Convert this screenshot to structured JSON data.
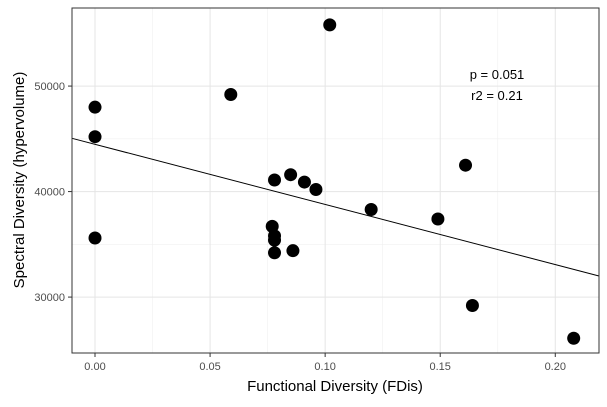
{
  "chart_data": {
    "type": "scatter",
    "title": "",
    "xlabel": "Functional Diversity (FDis)",
    "ylabel": "Spectral Diversity (hypervolume)",
    "xlim": [
      -0.01,
      0.219
    ],
    "ylim": [
      24700,
      57400
    ],
    "x_ticks": [
      0.0,
      0.05,
      0.1,
      0.15,
      0.2
    ],
    "x_tick_labels": [
      "0.00",
      "0.05",
      "0.10",
      "0.15",
      "0.20"
    ],
    "y_ticks": [
      30000,
      40000,
      50000
    ],
    "y_tick_labels": [
      "30000",
      "40000",
      "50000"
    ],
    "grid": true,
    "series": [
      {
        "points": [
          {
            "x": 0.0,
            "y": 48000
          },
          {
            "x": 0.0,
            "y": 45200
          },
          {
            "x": 0.0,
            "y": 35600
          },
          {
            "x": 0.059,
            "y": 49200
          },
          {
            "x": 0.077,
            "y": 36700
          },
          {
            "x": 0.078,
            "y": 35800
          },
          {
            "x": 0.078,
            "y": 35400
          },
          {
            "x": 0.078,
            "y": 34200
          },
          {
            "x": 0.078,
            "y": 41100
          },
          {
            "x": 0.085,
            "y": 41600
          },
          {
            "x": 0.086,
            "y": 34400
          },
          {
            "x": 0.091,
            "y": 40900
          },
          {
            "x": 0.096,
            "y": 40200
          },
          {
            "x": 0.102,
            "y": 55800
          },
          {
            "x": 0.12,
            "y": 38300
          },
          {
            "x": 0.149,
            "y": 37400
          },
          {
            "x": 0.161,
            "y": 42500
          },
          {
            "x": 0.164,
            "y": 29200
          },
          {
            "x": 0.208,
            "y": 26100
          }
        ],
        "color": "#000000"
      }
    ],
    "trendline": {
      "x": [
        -0.01,
        0.219
      ],
      "y": [
        45050,
        32000
      ],
      "color": "#000000"
    },
    "annotations": [
      "p = 0.051",
      "r2 = 0.21"
    ]
  }
}
